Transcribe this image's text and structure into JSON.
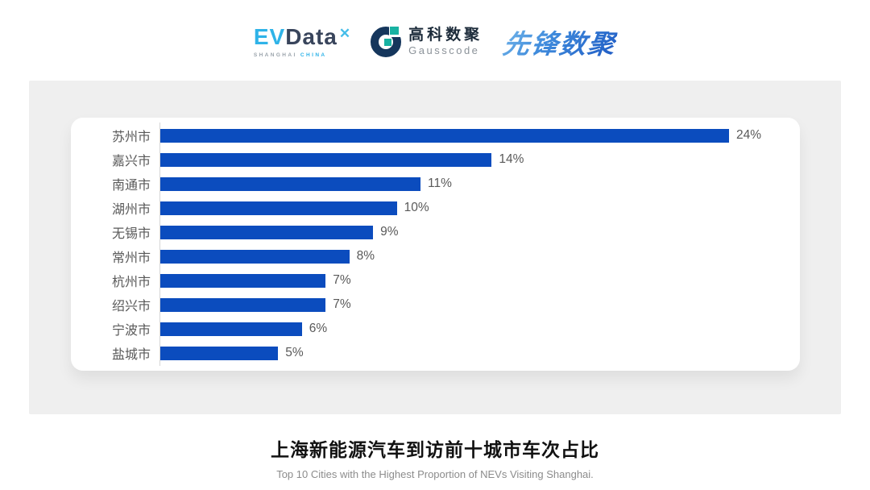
{
  "header": {
    "evdata": {
      "ev": "EV",
      "data": "Data",
      "mark": "✕",
      "sub_shanghai": "SHANGHAI",
      "sub_china": "CHINA"
    },
    "gausscode": {
      "cn": "高科数聚",
      "en": "Gausscode"
    },
    "xianfeng": {
      "text": "先锋数聚"
    }
  },
  "chart_data": {
    "type": "bar",
    "orientation": "horizontal",
    "categories": [
      "苏州市",
      "嘉兴市",
      "南通市",
      "湖州市",
      "无锡市",
      "常州市",
      "杭州市",
      "绍兴市",
      "宁波市",
      "盐城市"
    ],
    "values": [
      24,
      14,
      11,
      10,
      9,
      8,
      7,
      7,
      6,
      5
    ],
    "unit": "%",
    "value_labels": [
      "24%",
      "14%",
      "11%",
      "10%",
      "9%",
      "8%",
      "7%",
      "7%",
      "6%",
      "5%"
    ],
    "xlim": [
      0,
      24
    ],
    "bar_color": "#0b4cbe",
    "grid": false,
    "legend": false,
    "title": "上海新能源汽车到访前十城市车次占比"
  },
  "footer": {
    "title": "上海新能源汽车到访前十城市车次占比",
    "subtitle": "Top 10 Cities with the Highest Proportion of  NEVs Visiting Shanghai."
  },
  "colors": {
    "bar": "#0b4cbe",
    "panel_bg": "#efefef",
    "card_bg": "#ffffff",
    "label_text": "#595959",
    "brand_light_blue": "#2fb3e8",
    "brand_dark": "#39455c",
    "gausscode_teal": "#18b2a2",
    "gausscode_navy": "#15365c"
  }
}
